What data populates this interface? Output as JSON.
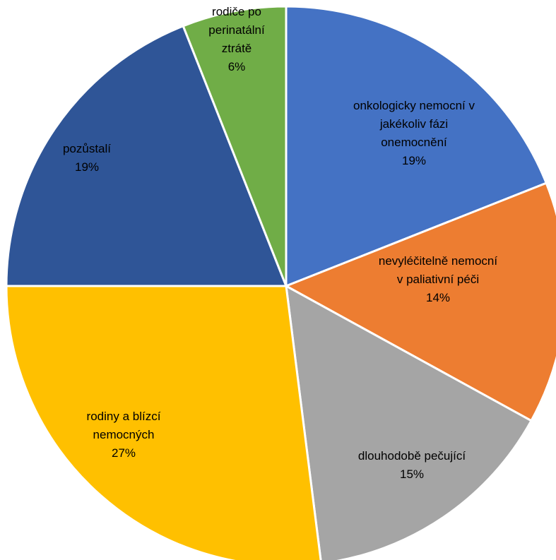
{
  "chart_data": {
    "type": "pie",
    "slices": [
      {
        "label": [
          "onkologicky nemocní v",
          "jakékoliv fázi",
          "onemocnění"
        ],
        "percent_label": "19%",
        "value": 19,
        "color": "#4472c4"
      },
      {
        "label": [
          "nevyléčitelně nemocní",
          "v paliativní péči"
        ],
        "percent_label": "14%",
        "value": 14,
        "color": "#ed7d31"
      },
      {
        "label": [
          "dlouhodobě pečující"
        ],
        "percent_label": "15%",
        "value": 15,
        "color": "#a5a5a5"
      },
      {
        "label": [
          "rodiny a blízcí",
          "nemocných"
        ],
        "percent_label": "27%",
        "value": 27,
        "color": "#ffc000"
      },
      {
        "label": [
          "pozůstalí"
        ],
        "percent_label": "19%",
        "value": 19,
        "color": "#2f5597"
      },
      {
        "label": [
          "rodiče po",
          "perinatální",
          "ztrátě"
        ],
        "percent_label": "6%",
        "value": 6,
        "color": "#70ad47"
      }
    ]
  }
}
